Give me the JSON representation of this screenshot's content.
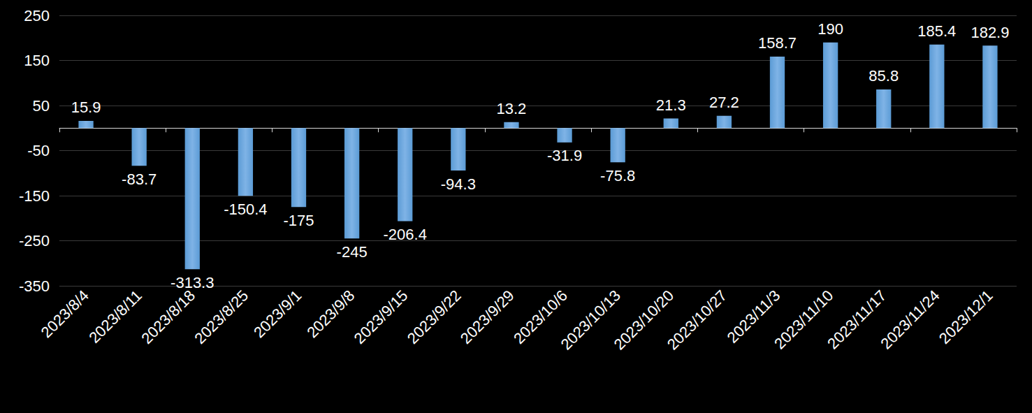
{
  "chart_data": {
    "type": "bar",
    "categories": [
      "2023/8/4",
      "2023/8/11",
      "2023/8/18",
      "2023/8/25",
      "2023/9/1",
      "2023/9/8",
      "2023/9/15",
      "2023/9/22",
      "2023/9/29",
      "2023/10/6",
      "2023/10/13",
      "2023/10/20",
      "2023/10/27",
      "2023/11/3",
      "2023/11/10",
      "2023/11/17",
      "2023/11/24",
      "2023/12/1"
    ],
    "values": [
      15.9,
      -83.7,
      -313.3,
      -150.4,
      -175,
      -245,
      -206.4,
      -94.3,
      13.2,
      -31.9,
      -75.8,
      21.3,
      27.2,
      158.7,
      190,
      85.8,
      185.4,
      182.9
    ],
    "color": "#5b9bd5",
    "ylim": [
      -350,
      250
    ],
    "yticks": [
      -350,
      -250,
      -150,
      -50,
      50,
      150,
      250
    ],
    "grid": true,
    "data_labels": true
  }
}
